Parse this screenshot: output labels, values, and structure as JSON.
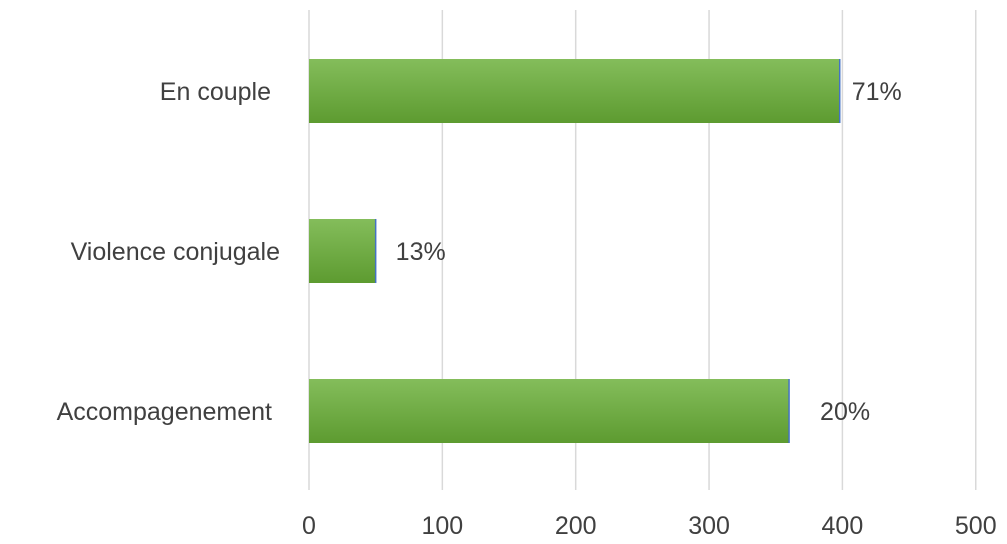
{
  "chart_data": {
    "type": "bar",
    "orientation": "horizontal",
    "categories": [
      "En couple",
      "Violence conjugale",
      "Accompagenement"
    ],
    "values": [
      398,
      50,
      360
    ],
    "data_labels": [
      "71%",
      "13%",
      "20%"
    ],
    "title": "",
    "xlabel": "",
    "ylabel": "",
    "xlim": [
      0,
      500
    ],
    "x_ticks": [
      "0",
      "100",
      "200",
      "300",
      "400",
      "500"
    ],
    "grid": "vertical",
    "legend": "none",
    "colors": {
      "bar_top": "#84bd5b",
      "bar_bottom": "#5d9b30",
      "bar_edge": "#4472c4",
      "gridline": "#d9d9d9",
      "text": "#404040"
    }
  }
}
